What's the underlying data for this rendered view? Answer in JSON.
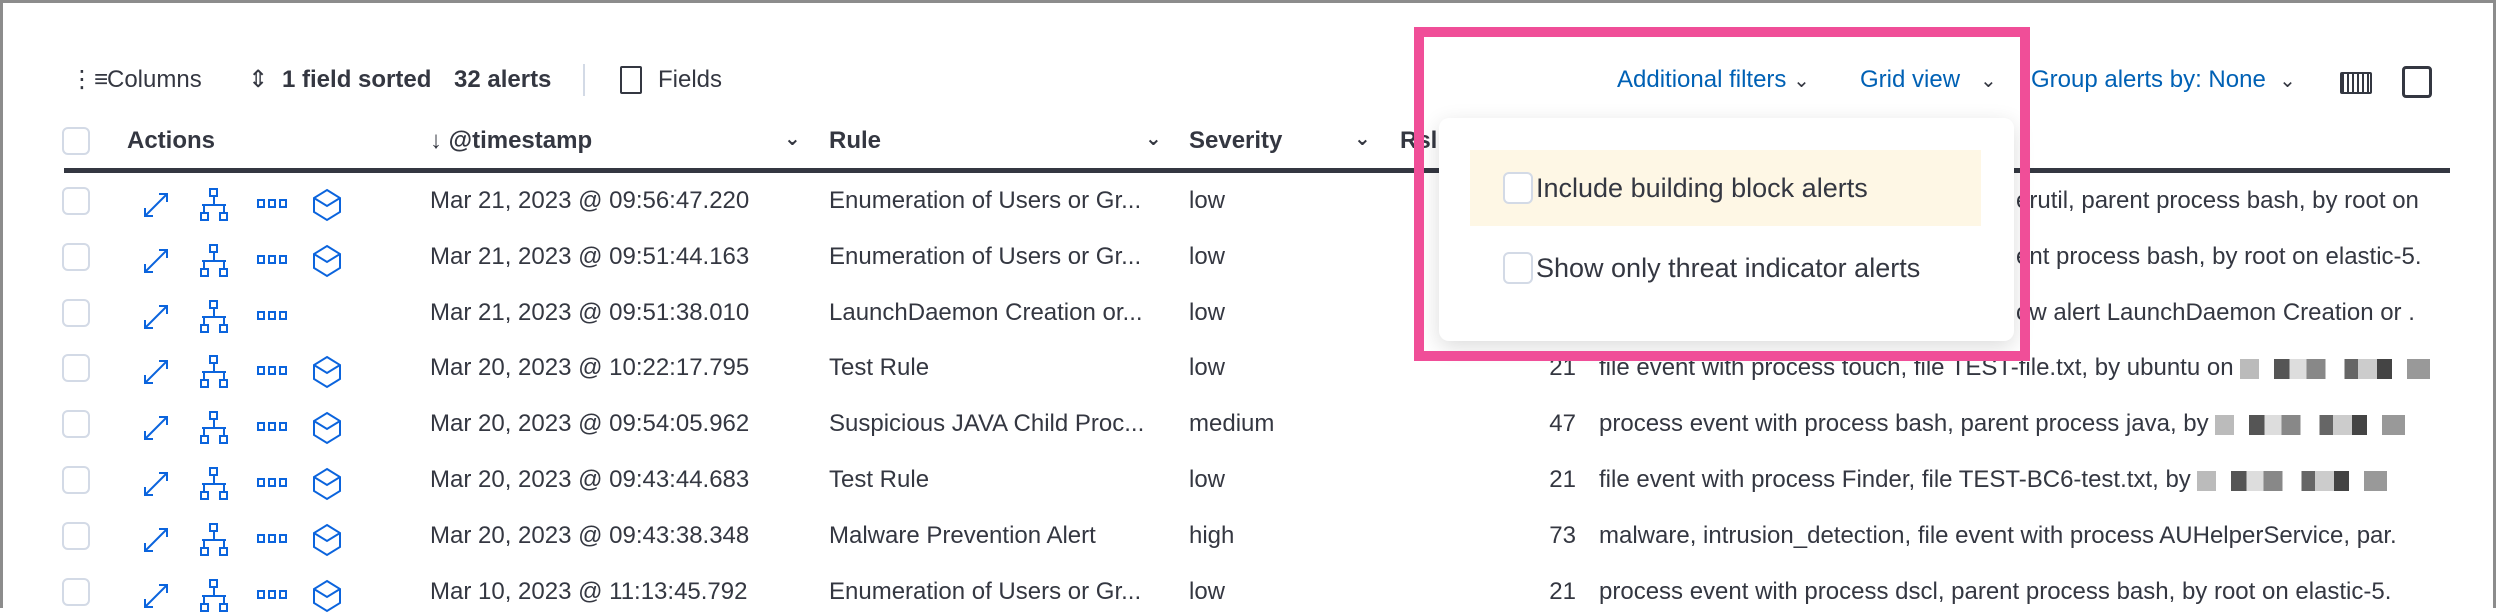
{
  "toolbar": {
    "columns_label": "Columns",
    "sort_label": "1 field sorted",
    "alerts_count": "32 alerts",
    "fields_label": "Fields",
    "additional_filters": "Additional filters",
    "grid_view": "Grid view",
    "group_by": "Group alerts by: None"
  },
  "table": {
    "headers": {
      "actions": "Actions",
      "timestamp": "@timestamp",
      "rule": "Rule",
      "severity": "Severity",
      "risk": "Rsl"
    },
    "rows": [
      {
        "timestamp": "Mar 21, 2023 @ 09:56:47.220",
        "rule": "Enumeration of Users or Gr...",
        "severity": "low",
        "risk": "",
        "reason": "erutil, parent process bash, by root on",
        "blurred": false,
        "has_analyze": true
      },
      {
        "timestamp": "Mar 21, 2023 @ 09:51:44.163",
        "rule": "Enumeration of Users or Gr...",
        "severity": "low",
        "risk": "",
        "reason": "ent process bash, by root on elastic-5.",
        "blurred": false,
        "has_analyze": true
      },
      {
        "timestamp": "Mar 21, 2023 @ 09:51:38.010",
        "rule": "LaunchDaemon Creation or...",
        "severity": "low",
        "risk": "",
        "reason": "ow alert LaunchDaemon Creation or .",
        "blurred": false,
        "has_analyze": false
      },
      {
        "timestamp": "Mar 20, 2023 @ 10:22:17.795",
        "rule": "Test Rule",
        "severity": "low",
        "risk": "21",
        "reason": "file event with process touch, file TEST-file.txt, by ubuntu on",
        "blurred": true,
        "has_analyze": true
      },
      {
        "timestamp": "Mar 20, 2023 @ 09:54:05.962",
        "rule": "Suspicious JAVA Child Proc...",
        "severity": "medium",
        "risk": "47",
        "reason": "process event with process bash, parent process java, by",
        "blurred": true,
        "has_analyze": true
      },
      {
        "timestamp": "Mar 20, 2023 @ 09:43:44.683",
        "rule": "Test Rule",
        "severity": "low",
        "risk": "21",
        "reason": "file event with process Finder, file TEST-BC6-test.txt, by",
        "blurred": true,
        "has_analyze": true
      },
      {
        "timestamp": "Mar 20, 2023 @ 09:43:38.348",
        "rule": "Malware Prevention Alert",
        "severity": "high",
        "risk": "73",
        "reason": "malware, intrusion_detection, file event with process AUHelperService, par.",
        "blurred": false,
        "has_analyze": true
      },
      {
        "timestamp": "Mar 10, 2023 @ 11:13:45.792",
        "rule": "Enumeration of Users or Gr...",
        "severity": "low",
        "risk": "21",
        "reason": "process event with process dscl, parent process bash, by root on elastic-5.",
        "blurred": false,
        "has_analyze": true
      }
    ]
  },
  "popover": {
    "options": [
      {
        "label": "Include building block alerts",
        "checked": false,
        "highlighted": true
      },
      {
        "label": "Show only threat indicator alerts",
        "checked": false,
        "highlighted": false
      }
    ]
  },
  "colors": {
    "accent": "#0061b5",
    "highlight_box": "#f04e98",
    "option_hover": "#fef7e5",
    "icon": "#0b64dd"
  },
  "icons": [
    "list-icon",
    "sort-icon",
    "fields-icon",
    "chevron-down-icon",
    "keyboard-icon",
    "fullscreen-icon",
    "expand-icon",
    "hierarchy-icon",
    "more-icon",
    "cube-icon"
  ]
}
